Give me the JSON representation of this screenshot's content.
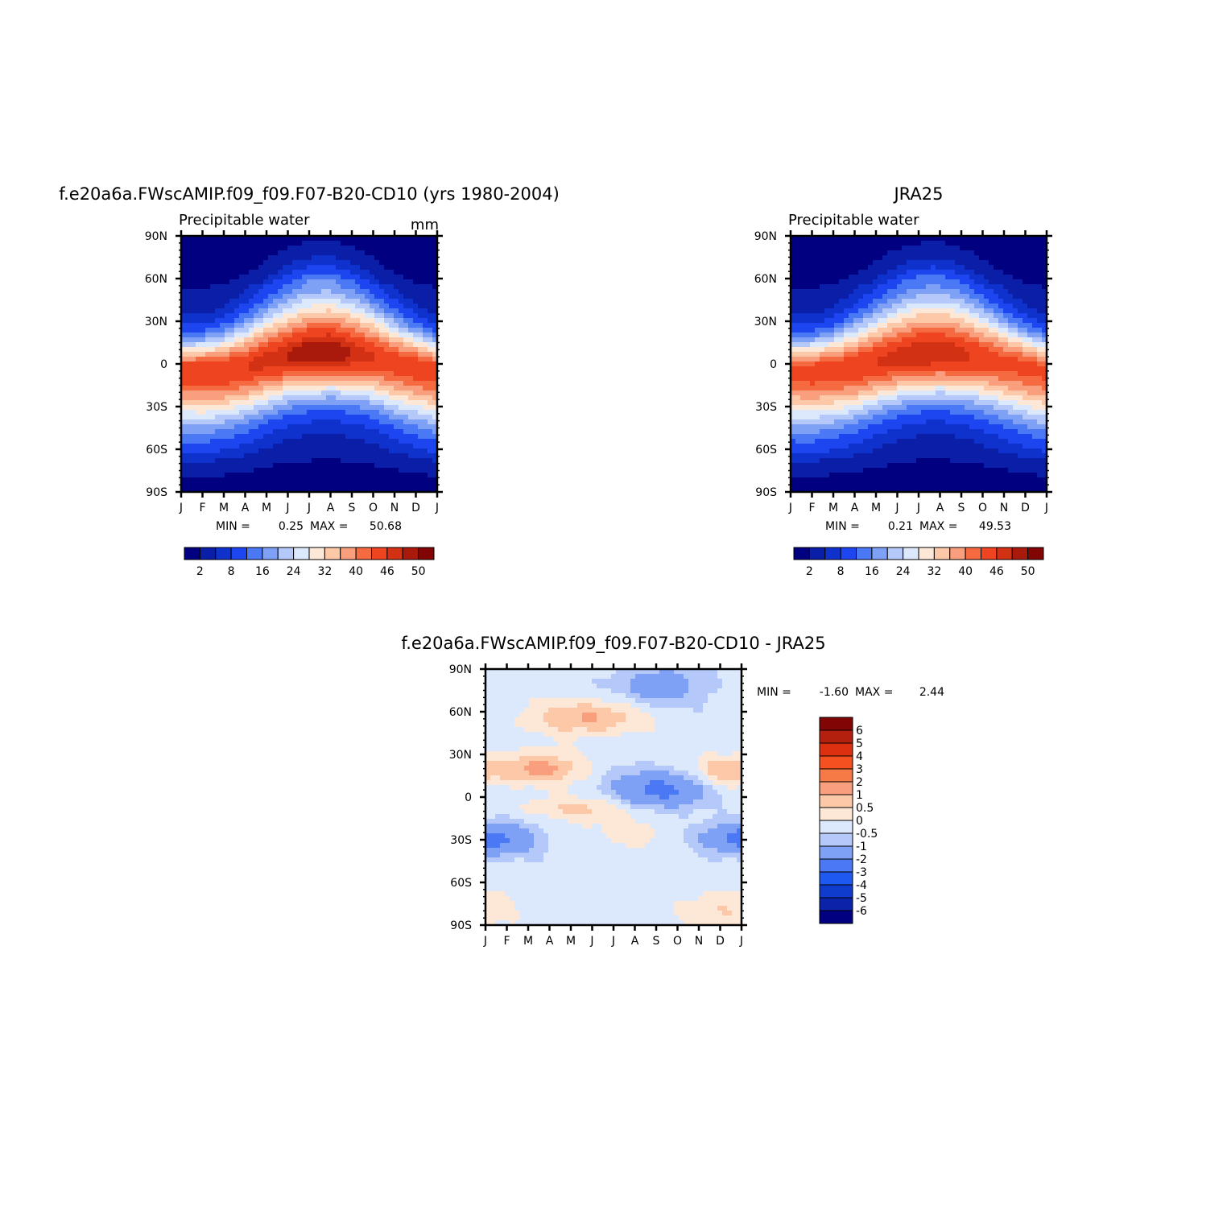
{
  "chart_data": [
    {
      "type": "heatmap",
      "title": "f.e20a6a.FWscAMIP.f09_f09.F07-B20-CD10 (yrs 1980-2004)",
      "subtitle_left": "Precipitable water",
      "subtitle_right": "mm",
      "x_ticks": [
        "J",
        "F",
        "M",
        "A",
        "M",
        "J",
        "J",
        "A",
        "S",
        "O",
        "N",
        "D",
        "J"
      ],
      "y_ticks": [
        "90N",
        "60N",
        "30N",
        "0",
        "30S",
        "60S",
        "90S"
      ],
      "ylim": [
        -90,
        90
      ],
      "stats": {
        "min_label": "MIN =",
        "min_value": "0.25",
        "max_label": "MAX =",
        "max_value": "50.68"
      },
      "colorbar": {
        "orientation": "horizontal",
        "labels": [
          "2",
          "8",
          "16",
          "24",
          "32",
          "40",
          "46",
          "50"
        ]
      },
      "data_range": [
        0.25,
        50.68
      ],
      "field": "climatology",
      "peak_lat_by_month": [
        -5,
        -5,
        -4,
        -2,
        2,
        5,
        7,
        8,
        7,
        5,
        1,
        -2,
        -5
      ],
      "peak_value_by_month": [
        45,
        46,
        46,
        46,
        47,
        48,
        50,
        50,
        48,
        46,
        45,
        45,
        45
      ]
    },
    {
      "type": "heatmap",
      "title": "JRA25",
      "subtitle_left": "Precipitable water",
      "subtitle_right": "",
      "x_ticks": [
        "J",
        "F",
        "M",
        "A",
        "M",
        "J",
        "J",
        "A",
        "S",
        "O",
        "N",
        "D",
        "J"
      ],
      "y_ticks": [
        "90N",
        "60N",
        "30N",
        "0",
        "30S",
        "60S",
        "90S"
      ],
      "ylim": [
        -90,
        90
      ],
      "stats": {
        "min_label": "MIN =",
        "min_value": "0.21",
        "max_label": "MAX =",
        "max_value": "49.53"
      },
      "colorbar": {
        "orientation": "horizontal",
        "labels": [
          "2",
          "8",
          "16",
          "24",
          "32",
          "40",
          "46",
          "50"
        ]
      },
      "data_range": [
        0.21,
        49.53
      ],
      "field": "climatology",
      "peak_lat_by_month": [
        -5,
        -5,
        -4,
        -2,
        1,
        4,
        6,
        7,
        6,
        4,
        1,
        -2,
        -5
      ],
      "peak_value_by_month": [
        44,
        45,
        45,
        46,
        46,
        47,
        48,
        48,
        47,
        45,
        44,
        44,
        44
      ]
    },
    {
      "type": "heatmap",
      "title": "f.e20a6a.FWscAMIP.f09_f09.F07-B20-CD10 - JRA25",
      "subtitle_left": "",
      "subtitle_right": "",
      "x_ticks": [
        "J",
        "F",
        "M",
        "A",
        "M",
        "J",
        "J",
        "A",
        "S",
        "O",
        "N",
        "D",
        "J"
      ],
      "y_ticks": [
        "90N",
        "60N",
        "30N",
        "0",
        "30S",
        "60S",
        "90S"
      ],
      "ylim": [
        -90,
        90
      ],
      "stats": {
        "min_label": "MIN =",
        "min_value": "-1.60",
        "max_label": "MAX =",
        "max_value": "2.44"
      },
      "colorbar": {
        "orientation": "vertical",
        "labels": [
          "6",
          "5",
          "4",
          "3",
          "2",
          "1",
          "0.5",
          "0",
          "-0.5",
          "-1",
          "-2",
          "-3",
          "-4",
          "-5",
          "-6"
        ]
      },
      "data_range": [
        -1.6,
        2.44
      ],
      "field": "difference"
    }
  ],
  "colors": {
    "seq_scale": [
      "#000080",
      "#0a1ea8",
      "#0f32cc",
      "#1e46f0",
      "#4b78f5",
      "#7ea1f5",
      "#b4c8fa",
      "#dce8fc",
      "#fde8d8",
      "#fcc8a8",
      "#fa9f7d",
      "#f56a41",
      "#ef4420",
      "#d23114",
      "#aa1a0c",
      "#820505"
    ],
    "div_scale": [
      "#820505",
      "#b4200e",
      "#dc3010",
      "#f55020",
      "#f57a46",
      "#fa9f7d",
      "#fcc8a8",
      "#fde8d8",
      "#dce8fc",
      "#b4c8fa",
      "#7ea1f5",
      "#4b78f5",
      "#1e5af0",
      "#0f3ccc",
      "#0a23a8",
      "#000080"
    ]
  }
}
